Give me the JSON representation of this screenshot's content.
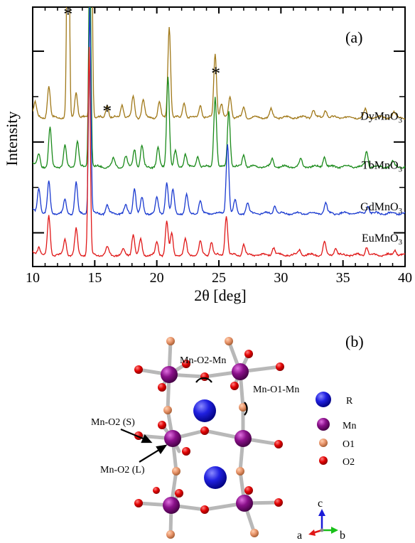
{
  "panel_a": {
    "label": "(a)",
    "chart_data": {
      "type": "line",
      "xlabel": "2θ [deg]",
      "ylabel": "Intensity",
      "xlim": [
        10,
        40
      ],
      "x_ticks": [
        10,
        15,
        20,
        25,
        30,
        35,
        40
      ],
      "y_tick_labels": false,
      "legend": "inline labels at right",
      "series": [
        {
          "name": "DyMnO",
          "subscript": "3",
          "color": "#a07818",
          "baseline": 0.575,
          "peaks": [
            [
              10.2,
              0.05
            ],
            [
              11.3,
              0.12
            ],
            [
              12.85,
              1.25
            ],
            [
              13.5,
              0.1
            ],
            [
              14.7,
              1.1
            ],
            [
              16.0,
              0.05
            ],
            [
              17.2,
              0.05
            ],
            [
              18.1,
              0.08
            ],
            [
              18.9,
              0.07
            ],
            [
              20.2,
              0.06
            ],
            [
              21.0,
              0.35
            ],
            [
              22.2,
              0.06
            ],
            [
              23.5,
              0.05
            ],
            [
              24.7,
              0.25
            ],
            [
              25.2,
              0.05
            ],
            [
              25.9,
              0.08
            ],
            [
              27.0,
              0.04
            ],
            [
              29.2,
              0.03
            ],
            [
              32.6,
              0.03
            ],
            [
              33.6,
              0.03
            ],
            [
              36.8,
              0.03
            ],
            [
              39.1,
              0.02
            ]
          ]
        },
        {
          "name": "TbMnO",
          "subscript": "3",
          "color": "#1a8a1a",
          "baseline": 0.385,
          "peaks": [
            [
              10.5,
              0.05
            ],
            [
              11.4,
              0.15
            ],
            [
              12.6,
              0.08
            ],
            [
              13.6,
              0.1
            ],
            [
              14.6,
              0.85
            ],
            [
              16.5,
              0.03
            ],
            [
              17.5,
              0.04
            ],
            [
              18.2,
              0.07
            ],
            [
              18.8,
              0.08
            ],
            [
              20.1,
              0.07
            ],
            [
              20.9,
              0.35
            ],
            [
              21.5,
              0.06
            ],
            [
              22.3,
              0.05
            ],
            [
              23.3,
              0.04
            ],
            [
              24.7,
              0.27
            ],
            [
              25.8,
              0.22
            ],
            [
              27.0,
              0.05
            ],
            [
              29.3,
              0.03
            ],
            [
              31.6,
              0.03
            ],
            [
              33.5,
              0.04
            ],
            [
              36.9,
              0.06
            ],
            [
              39.0,
              0.02
            ]
          ]
        },
        {
          "name": "GdMnO",
          "subscript": "3",
          "color": "#1a3ad0",
          "baseline": 0.205,
          "peaks": [
            [
              10.5,
              0.1
            ],
            [
              11.3,
              0.12
            ],
            [
              12.6,
              0.05
            ],
            [
              13.5,
              0.12
            ],
            [
              14.6,
              0.8
            ],
            [
              16.0,
              0.03
            ],
            [
              17.5,
              0.03
            ],
            [
              18.2,
              0.1
            ],
            [
              18.8,
              0.06
            ],
            [
              20.0,
              0.06
            ],
            [
              20.8,
              0.12
            ],
            [
              21.3,
              0.09
            ],
            [
              22.4,
              0.07
            ],
            [
              23.5,
              0.05
            ],
            [
              25.7,
              0.27
            ],
            [
              26.3,
              0.05
            ],
            [
              27.3,
              0.04
            ],
            [
              29.5,
              0.03
            ],
            [
              33.6,
              0.04
            ],
            [
              37.0,
              0.03
            ]
          ]
        },
        {
          "name": "EuMnO",
          "subscript": "3",
          "color": "#e01818",
          "baseline": 0.045,
          "peaks": [
            [
              10.5,
              0.03
            ],
            [
              11.3,
              0.15
            ],
            [
              12.6,
              0.06
            ],
            [
              13.5,
              0.1
            ],
            [
              14.55,
              0.8
            ],
            [
              16.0,
              0.03
            ],
            [
              17.3,
              0.02
            ],
            [
              18.1,
              0.08
            ],
            [
              18.7,
              0.06
            ],
            [
              20.0,
              0.05
            ],
            [
              20.8,
              0.13
            ],
            [
              21.2,
              0.08
            ],
            [
              22.3,
              0.06
            ],
            [
              23.5,
              0.05
            ],
            [
              24.4,
              0.05
            ],
            [
              25.6,
              0.15
            ],
            [
              27.0,
              0.04
            ],
            [
              29.4,
              0.03
            ],
            [
              31.5,
              0.02
            ],
            [
              33.5,
              0.05
            ],
            [
              34.4,
              0.03
            ],
            [
              36.9,
              0.03
            ],
            [
              39.2,
              0.02
            ]
          ]
        }
      ],
      "annotations": [
        {
          "text": "*",
          "x": 12.85,
          "y": 0.95
        },
        {
          "text": "*",
          "x": 16.0,
          "y": 0.575
        },
        {
          "text": "*",
          "x": 24.75,
          "y": 0.72
        }
      ]
    }
  },
  "panel_b": {
    "label": "(b)",
    "labels": {
      "mn_o2_mn": "Mn-O2-Mn",
      "mn_o1_mn": "Mn-O1-Mn",
      "mn_o2_s": "Mn-O2 (S)",
      "mn_o2_l": "Mn-O2 (L)"
    },
    "legend": [
      {
        "label": "R",
        "color": "#1a1ad8"
      },
      {
        "label": "Mn",
        "color": "#8a108a"
      },
      {
        "label": "O1",
        "color": "#e8946a"
      },
      {
        "label": "O2",
        "color": "#e00000"
      }
    ],
    "axes": {
      "a": "a",
      "b": "b",
      "c": "c"
    }
  }
}
